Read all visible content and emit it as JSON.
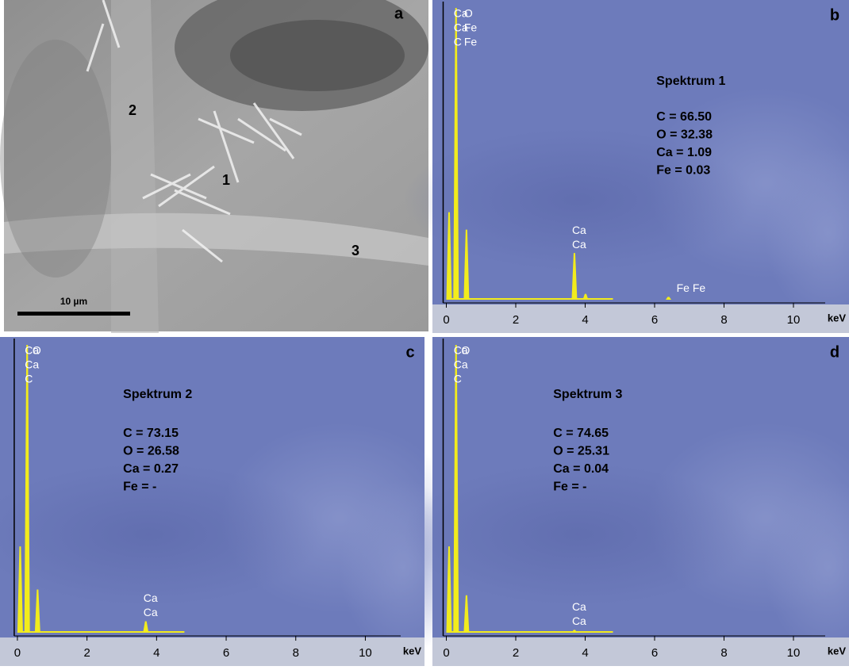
{
  "figure": {
    "panel_a": {
      "letter": "a",
      "points": [
        "1",
        "2",
        "3"
      ],
      "scale_bar": "10 µm"
    }
  },
  "chart_data": [
    {
      "type": "spectrum",
      "panel": "b",
      "title": "Spektrum 1",
      "annotations": [
        "C = 66.50",
        "O = 32.38",
        "Ca = 1.09",
        "Fe = 0.03"
      ],
      "xlabel": "keV",
      "xlim": [
        -0.4,
        11.6
      ],
      "xticks": [
        0,
        2,
        4,
        6,
        8,
        10
      ],
      "ylim": [
        0,
        100
      ],
      "color": "#f2ec1c",
      "peaks": {
        "x": [
          0.08,
          0.28,
          0.58,
          3.69,
          4.01,
          6.4
        ],
        "values": [
          30,
          100,
          24,
          16,
          2,
          1
        ]
      },
      "peak_labels": [
        {
          "x": 0.28,
          "labels": [
            "Ca",
            "Ca",
            "C"
          ]
        },
        {
          "x": 0.58,
          "labels": [
            "O",
            "Fe",
            "Fe"
          ]
        },
        {
          "x": 3.69,
          "labels": [
            "Ca",
            "Ca"
          ]
        },
        {
          "x": 6.7,
          "labels": [
            "Fe Fe"
          ]
        }
      ]
    },
    {
      "type": "spectrum",
      "panel": "c",
      "title": "Spektrum 2",
      "annotations": [
        "C = 73.15",
        "O = 26.58",
        "Ca = 0.27",
        "Fe = -"
      ],
      "xlabel": "keV",
      "xlim": [
        -0.5,
        11.7
      ],
      "xticks": [
        0,
        2,
        4,
        6,
        8,
        10
      ],
      "ylim": [
        0,
        100
      ],
      "color": "#f2ec1c",
      "peaks": {
        "x": [
          0.08,
          0.28,
          0.58,
          3.69
        ],
        "values": [
          30,
          100,
          15,
          4
        ]
      },
      "peak_labels": [
        {
          "x": 0.28,
          "labels": [
            "Ca",
            "Ca",
            "C"
          ]
        },
        {
          "x": 0.5,
          "labels": [
            "O"
          ]
        },
        {
          "x": 3.69,
          "labels": [
            "Ca",
            "Ca"
          ]
        }
      ]
    },
    {
      "type": "spectrum",
      "panel": "d",
      "title": "Spektrum 3",
      "annotations": [
        "C = 74.65",
        "O = 25.31",
        "Ca = 0.04",
        "Fe = -"
      ],
      "xlabel": "keV",
      "xlim": [
        -0.4,
        11.6
      ],
      "xticks": [
        0,
        2,
        4,
        6,
        8,
        10
      ],
      "ylim": [
        0,
        100
      ],
      "color": "#f2ec1c",
      "peaks": {
        "x": [
          0.08,
          0.28,
          0.58,
          3.69
        ],
        "values": [
          30,
          100,
          13,
          1
        ]
      },
      "peak_labels": [
        {
          "x": 0.28,
          "labels": [
            "Ca",
            "Ca",
            "C"
          ]
        },
        {
          "x": 0.5,
          "labels": [
            "O"
          ]
        },
        {
          "x": 3.69,
          "labels": [
            "Ca",
            "Ca"
          ]
        }
      ]
    }
  ]
}
